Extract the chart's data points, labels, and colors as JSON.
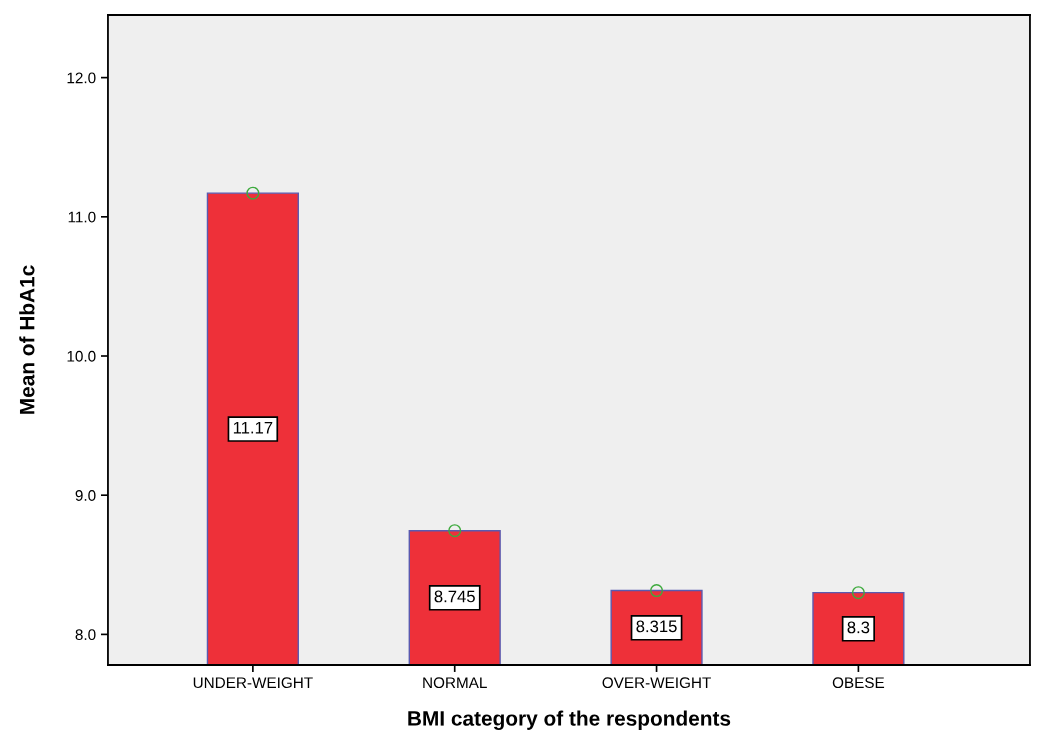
{
  "chart_data": {
    "type": "bar",
    "xlabel": "BMI category of the respondents",
    "ylabel": "Mean of HbA1c",
    "categories": [
      "UNDER-WEIGHT",
      "NORMAL",
      "OVER-WEIGHT",
      "OBESE"
    ],
    "series": [
      {
        "color": "#ee3039",
        "values": [
          11.17,
          8.745,
          8.315,
          8.3
        ],
        "value_labels": [
          "11.17",
          "8.745",
          "8.315",
          "8.3"
        ]
      },
      {
        "type": "scatter",
        "color": "#3daa3d",
        "marker": "circle",
        "values": [
          11.17,
          8.745,
          8.315,
          8.3
        ]
      }
    ],
    "ylim": [
      7.78,
      12.45
    ],
    "yticks": [
      {
        "value": 8,
        "label": "8.0"
      },
      {
        "value": 9,
        "label": "9.0"
      },
      {
        "value": 10,
        "label": "10.0"
      },
      {
        "value": 11,
        "label": "11.0"
      },
      {
        "value": 12,
        "label": "12.0"
      }
    ],
    "grid": false,
    "legend": false
  }
}
